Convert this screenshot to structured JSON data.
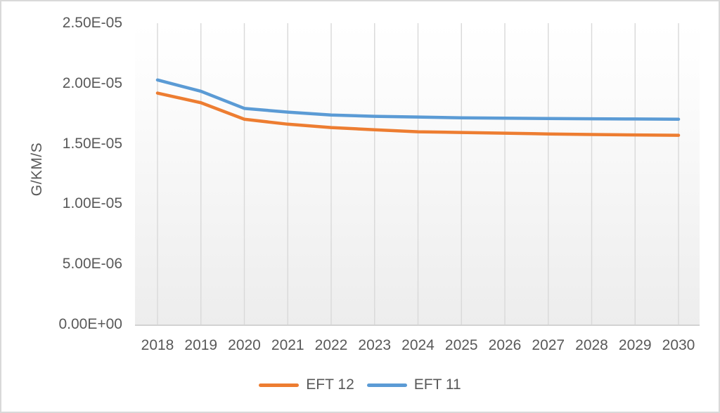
{
  "chart_data": {
    "type": "line",
    "title": "",
    "xlabel": "",
    "ylabel": "G/KM/S",
    "categories": [
      "2018",
      "2019",
      "2020",
      "2021",
      "2022",
      "2023",
      "2024",
      "2025",
      "2026",
      "2027",
      "2028",
      "2029",
      "2030"
    ],
    "series": [
      {
        "name": "EFT 12",
        "color": "#ED7D31",
        "values": [
          1.92e-05,
          1.84e-05,
          1.703e-05,
          1.662e-05,
          1.634e-05,
          1.616e-05,
          1.599e-05,
          1.593e-05,
          1.587e-05,
          1.581e-05,
          1.576e-05,
          1.573e-05,
          1.57e-05
        ]
      },
      {
        "name": "EFT 11",
        "color": "#5B9BD5",
        "values": [
          2.029e-05,
          1.935e-05,
          1.793e-05,
          1.762e-05,
          1.738e-05,
          1.727e-05,
          1.721e-05,
          1.715e-05,
          1.712e-05,
          1.709e-05,
          1.707e-05,
          1.705e-05,
          1.703e-05
        ]
      }
    ],
    "ylim": [
      0,
      2.5e-05
    ],
    "yticks": [
      {
        "label": "0.00E+00",
        "value": 0
      },
      {
        "label": "5.00E-06",
        "value": 5e-06
      },
      {
        "label": "1.00E-05",
        "value": 1e-05
      },
      {
        "label": "1.50E-05",
        "value": 1.5e-05
      },
      {
        "label": "2.00E-05",
        "value": 2e-05
      },
      {
        "label": "2.50E-05",
        "value": 2.5e-05
      }
    ],
    "grid": "vertical-only",
    "legend_position": "bottom"
  },
  "colors": {
    "axis_text": "#595959",
    "gridline": "#d9d9d9",
    "axis_line": "#d2d2d2",
    "chart_border": "#d9d9d9",
    "plot_bg_top": "#ffffff",
    "plot_bg_bottom": "#ededed",
    "series_eft12": "#ED7D31",
    "series_eft11": "#5B9BD5"
  }
}
